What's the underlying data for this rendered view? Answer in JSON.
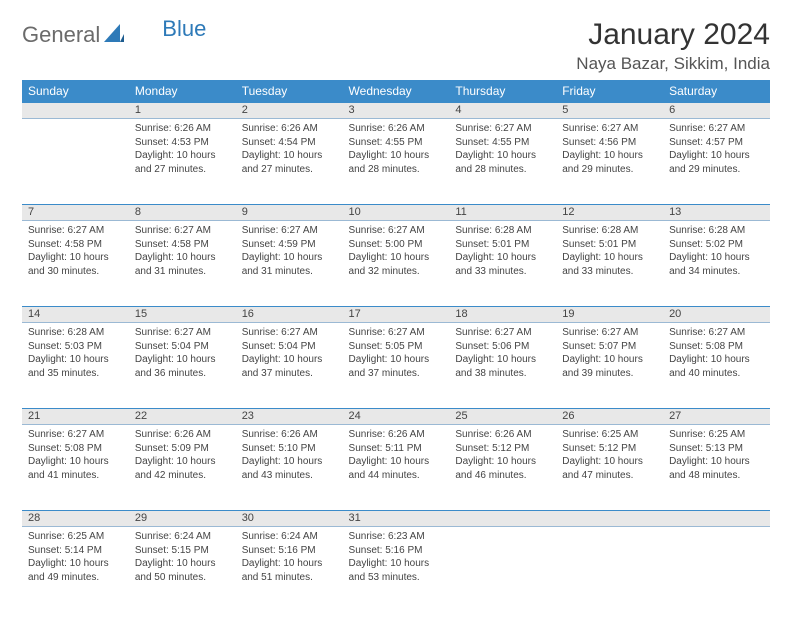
{
  "brand": {
    "part1": "General",
    "part2": "Blue"
  },
  "title": "January 2024",
  "location": "Naya Bazar, Sikkim, India",
  "colors": {
    "header_bg": "#3b8bc9",
    "header_text": "#ffffff",
    "daynum_bg": "#e8e8e8",
    "border": "#3b8bc9",
    "body_text": "#444444",
    "background": "#ffffff",
    "logo_gray": "#6b6b6b",
    "logo_blue": "#2e7ab8"
  },
  "weekdays": [
    "Sunday",
    "Monday",
    "Tuesday",
    "Wednesday",
    "Thursday",
    "Friday",
    "Saturday"
  ],
  "weeks": [
    {
      "nums": [
        "",
        "1",
        "2",
        "3",
        "4",
        "5",
        "6"
      ],
      "cells": [
        null,
        {
          "sunrise": "6:26 AM",
          "sunset": "4:53 PM",
          "daylight": "10 hours and 27 minutes."
        },
        {
          "sunrise": "6:26 AM",
          "sunset": "4:54 PM",
          "daylight": "10 hours and 27 minutes."
        },
        {
          "sunrise": "6:26 AM",
          "sunset": "4:55 PM",
          "daylight": "10 hours and 28 minutes."
        },
        {
          "sunrise": "6:27 AM",
          "sunset": "4:55 PM",
          "daylight": "10 hours and 28 minutes."
        },
        {
          "sunrise": "6:27 AM",
          "sunset": "4:56 PM",
          "daylight": "10 hours and 29 minutes."
        },
        {
          "sunrise": "6:27 AM",
          "sunset": "4:57 PM",
          "daylight": "10 hours and 29 minutes."
        }
      ]
    },
    {
      "nums": [
        "7",
        "8",
        "9",
        "10",
        "11",
        "12",
        "13"
      ],
      "cells": [
        {
          "sunrise": "6:27 AM",
          "sunset": "4:58 PM",
          "daylight": "10 hours and 30 minutes."
        },
        {
          "sunrise": "6:27 AM",
          "sunset": "4:58 PM",
          "daylight": "10 hours and 31 minutes."
        },
        {
          "sunrise": "6:27 AM",
          "sunset": "4:59 PM",
          "daylight": "10 hours and 31 minutes."
        },
        {
          "sunrise": "6:27 AM",
          "sunset": "5:00 PM",
          "daylight": "10 hours and 32 minutes."
        },
        {
          "sunrise": "6:28 AM",
          "sunset": "5:01 PM",
          "daylight": "10 hours and 33 minutes."
        },
        {
          "sunrise": "6:28 AM",
          "sunset": "5:01 PM",
          "daylight": "10 hours and 33 minutes."
        },
        {
          "sunrise": "6:28 AM",
          "sunset": "5:02 PM",
          "daylight": "10 hours and 34 minutes."
        }
      ]
    },
    {
      "nums": [
        "14",
        "15",
        "16",
        "17",
        "18",
        "19",
        "20"
      ],
      "cells": [
        {
          "sunrise": "6:28 AM",
          "sunset": "5:03 PM",
          "daylight": "10 hours and 35 minutes."
        },
        {
          "sunrise": "6:27 AM",
          "sunset": "5:04 PM",
          "daylight": "10 hours and 36 minutes."
        },
        {
          "sunrise": "6:27 AM",
          "sunset": "5:04 PM",
          "daylight": "10 hours and 37 minutes."
        },
        {
          "sunrise": "6:27 AM",
          "sunset": "5:05 PM",
          "daylight": "10 hours and 37 minutes."
        },
        {
          "sunrise": "6:27 AM",
          "sunset": "5:06 PM",
          "daylight": "10 hours and 38 minutes."
        },
        {
          "sunrise": "6:27 AM",
          "sunset": "5:07 PM",
          "daylight": "10 hours and 39 minutes."
        },
        {
          "sunrise": "6:27 AM",
          "sunset": "5:08 PM",
          "daylight": "10 hours and 40 minutes."
        }
      ]
    },
    {
      "nums": [
        "21",
        "22",
        "23",
        "24",
        "25",
        "26",
        "27"
      ],
      "cells": [
        {
          "sunrise": "6:27 AM",
          "sunset": "5:08 PM",
          "daylight": "10 hours and 41 minutes."
        },
        {
          "sunrise": "6:26 AM",
          "sunset": "5:09 PM",
          "daylight": "10 hours and 42 minutes."
        },
        {
          "sunrise": "6:26 AM",
          "sunset": "5:10 PM",
          "daylight": "10 hours and 43 minutes."
        },
        {
          "sunrise": "6:26 AM",
          "sunset": "5:11 PM",
          "daylight": "10 hours and 44 minutes."
        },
        {
          "sunrise": "6:26 AM",
          "sunset": "5:12 PM",
          "daylight": "10 hours and 46 minutes."
        },
        {
          "sunrise": "6:25 AM",
          "sunset": "5:12 PM",
          "daylight": "10 hours and 47 minutes."
        },
        {
          "sunrise": "6:25 AM",
          "sunset": "5:13 PM",
          "daylight": "10 hours and 48 minutes."
        }
      ]
    },
    {
      "nums": [
        "28",
        "29",
        "30",
        "31",
        "",
        "",
        ""
      ],
      "cells": [
        {
          "sunrise": "6:25 AM",
          "sunset": "5:14 PM",
          "daylight": "10 hours and 49 minutes."
        },
        {
          "sunrise": "6:24 AM",
          "sunset": "5:15 PM",
          "daylight": "10 hours and 50 minutes."
        },
        {
          "sunrise": "6:24 AM",
          "sunset": "5:16 PM",
          "daylight": "10 hours and 51 minutes."
        },
        {
          "sunrise": "6:23 AM",
          "sunset": "5:16 PM",
          "daylight": "10 hours and 53 minutes."
        },
        null,
        null,
        null
      ]
    }
  ],
  "labels": {
    "sunrise": "Sunrise: ",
    "sunset": "Sunset: ",
    "daylight": "Daylight: "
  }
}
